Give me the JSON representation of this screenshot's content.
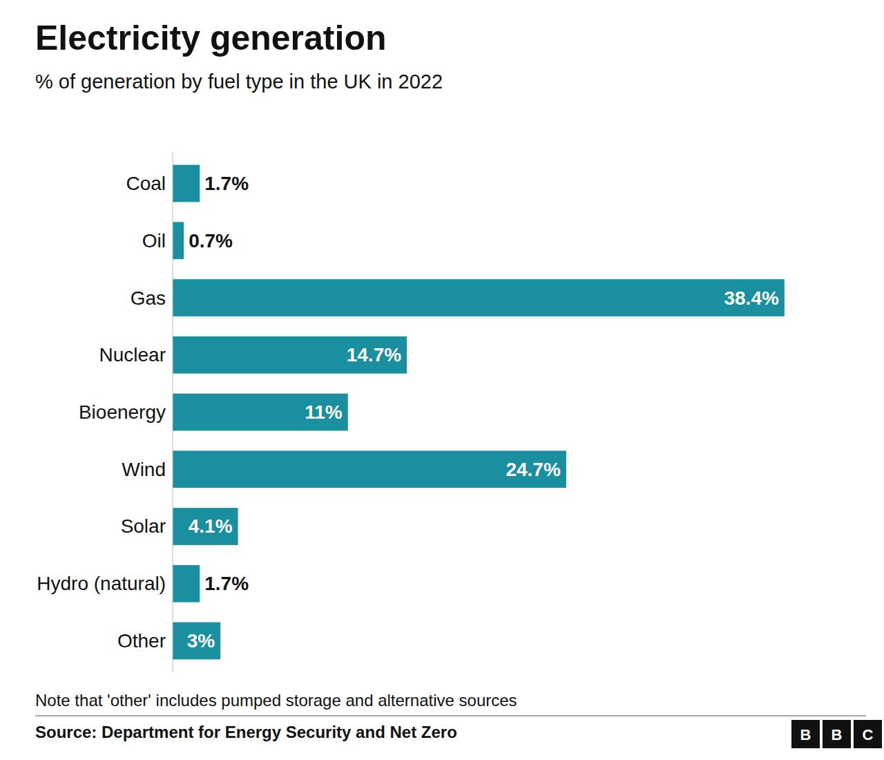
{
  "chart_data": {
    "type": "bar",
    "orientation": "horizontal",
    "title": "Electricity generation",
    "subtitle": "% of generation by fuel type in the UK in 2022",
    "categories": [
      "Coal",
      "Oil",
      "Gas",
      "Nuclear",
      "Bioenergy",
      "Wind",
      "Solar",
      "Hydro (natural)",
      "Other"
    ],
    "values": [
      1.7,
      0.7,
      38.4,
      14.7,
      11.0,
      24.7,
      4.1,
      1.7,
      3.0
    ],
    "value_labels": [
      "1.7%",
      "0.7%",
      "38.4%",
      "14.7%",
      "11%",
      "24.7%",
      "4.1%",
      "1.7%",
      "3%"
    ],
    "data_labels": true,
    "color": "#1a8fa0",
    "xlim": [
      0,
      43
    ],
    "tick_labels": "y",
    "grid": false,
    "note": "Note that 'other' includes pumped storage and alternative sources",
    "source": "Source: Department for Energy Security and Net Zero",
    "logo": "BBC"
  }
}
